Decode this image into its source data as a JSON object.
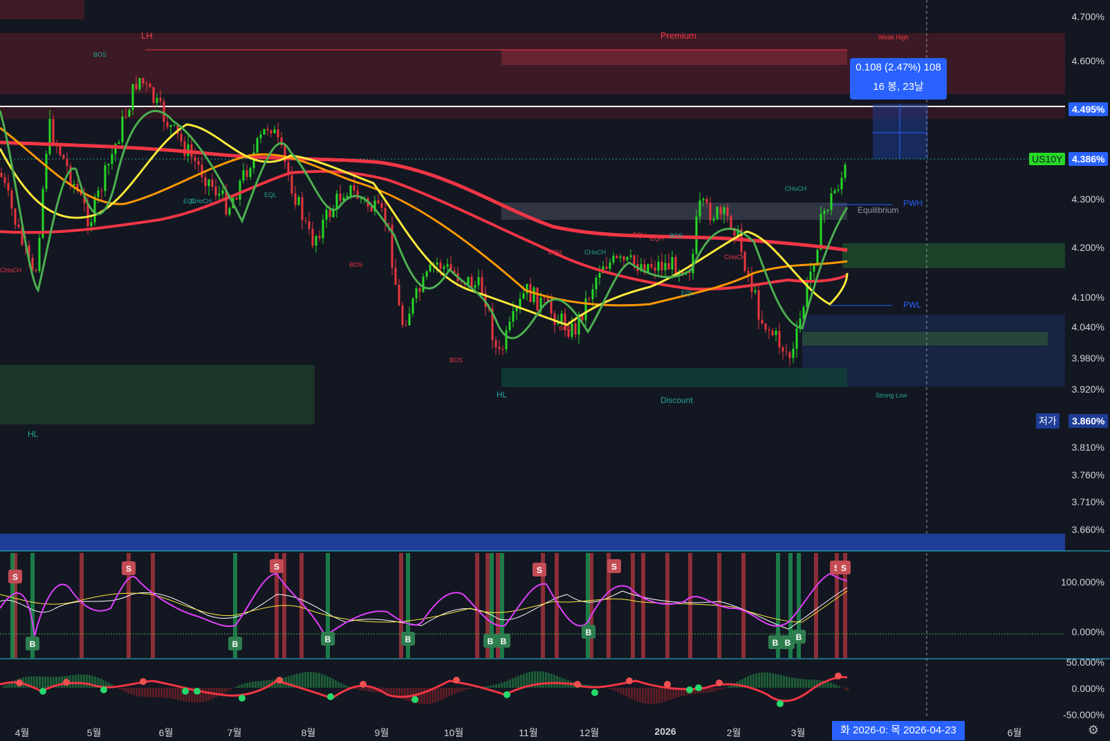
{
  "chart": {
    "symbol_tag": "US10Y",
    "current_price": "4.386%",
    "line_price": "4.495%",
    "low_tag": "저가",
    "low_price": "3.860%",
    "measure": {
      "line1": "0.108 (2.47%) 108",
      "line2": "16 봉, 23날"
    },
    "time_tooltip": "화 2026-0:  목 2026-04-23",
    "price_ticks": [
      "4.700%",
      "4.600%",
      "4.300%",
      "4.200%",
      "4.100%",
      "4.040%",
      "3.980%",
      "3.920%",
      "3.810%",
      "3.760%",
      "3.710%",
      "3.660%"
    ],
    "osc_ticks": [
      "100.000%",
      "0.000%"
    ],
    "mom_ticks": [
      "50.000%",
      "0.000%",
      "-50.000%"
    ],
    "months": [
      "4월",
      "5월",
      "6월",
      "7월",
      "8월",
      "9월",
      "10월",
      "11월",
      "12월",
      "2026",
      "2월",
      "3월",
      "6월"
    ],
    "zones": {
      "premium": "Premium",
      "discount": "Discount",
      "equilibrium": "Equilibrium",
      "weak_high": "Weak High",
      "strong_low": "Strong Low",
      "pwh": "PWH",
      "pwl": "PWL",
      "lh": "LH",
      "hl1": "HL",
      "hl2": "HL"
    },
    "structure_labels": {
      "bos": "BOS",
      "choch": "CHoCH",
      "eqh": "EQH",
      "eql": "EQL"
    },
    "signals": {
      "sell": "S",
      "buy": "B"
    },
    "colors": {
      "background": "#131722",
      "up": "#26d926",
      "down": "#e8363d",
      "ema_fast": "#ffeb3b",
      "ema_mid": "#ff9800",
      "ema_slow": "#f23645",
      "ema_green": "#4caf50",
      "accent": "#2962ff",
      "premium_zone": "#5d1f2a",
      "discount_zone": "#0f3d36"
    }
  }
}
